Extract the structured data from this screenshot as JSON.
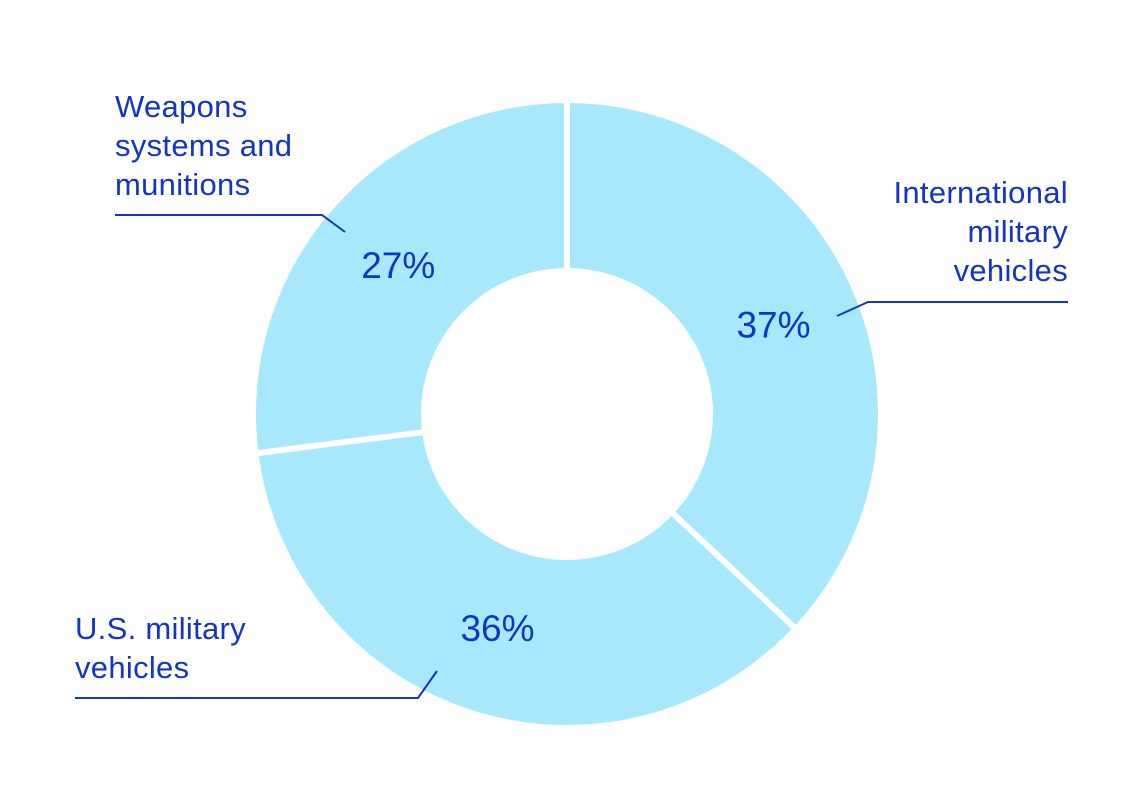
{
  "colors": {
    "slice": "#a8e8fd",
    "text": "#1135c9",
    "leader": "#1135c9",
    "separator": "#ffffff",
    "background": "#ffffff"
  },
  "chart_data": {
    "type": "pie",
    "variant": "donut",
    "title": "",
    "legend": "none",
    "start_angle_deg": 0,
    "direction": "clockwise",
    "slices": [
      {
        "category": "International military vehicles",
        "label_lines": [
          "International",
          "military",
          "vehicles"
        ],
        "value": 37,
        "value_label": "37%"
      },
      {
        "category": "U.S. military vehicles",
        "label_lines": [
          "U.S. military",
          "vehicles"
        ],
        "value": 36,
        "value_label": "36%"
      },
      {
        "category": "Weapons systems and munitions",
        "label_lines": [
          "Weapons",
          "systems and",
          "munitions"
        ],
        "value": 27,
        "value_label": "27%"
      }
    ]
  }
}
